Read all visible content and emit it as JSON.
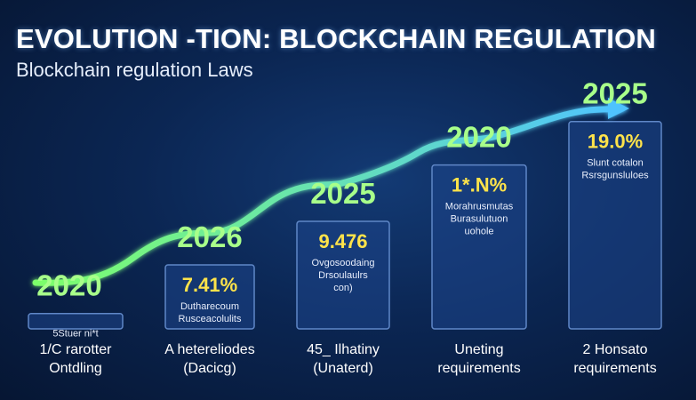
{
  "header": {
    "title": "EVOLUTION -TION: BLOCKCHAIN REGULATION",
    "subtitle": "Blockchain regulation Laws"
  },
  "chart_data": {
    "type": "bar",
    "title": "EVOLUTION -TION: BLOCKCHAIN REGULATION",
    "subtitle": "Blockchain regulation Laws",
    "categories": [
      "2020",
      "2026",
      "2025",
      "2020",
      "2025"
    ],
    "values": [
      6,
      25,
      42,
      64,
      81
    ],
    "ylim": [
      0,
      100
    ],
    "grid": false,
    "legend": "none",
    "value_labels": [
      "",
      "7.41%",
      "9.476",
      "1*.N%",
      "19.0%"
    ],
    "bar_text": [
      [
        "5Stuer ni*t"
      ],
      [
        "Dutharecoum",
        "Rusceacolulits"
      ],
      [
        "Ovgosoodaing",
        "Drsoulaulrs",
        "con)"
      ],
      [
        "Morahrusmutas",
        "Burasulutuon",
        "uohole"
      ],
      [
        "Slunt cotalon",
        "Rsrsgunsluloes"
      ]
    ],
    "captions": [
      [
        "1/C rarotter",
        "Ontdling"
      ],
      [
        "A hetereliodes",
        "(Dacicg)"
      ],
      [
        "45_ Ilhatiny",
        "(Unaterd)"
      ],
      [
        "Uneting",
        "requirements"
      ],
      [
        "2 Honsato",
        "requirements"
      ]
    ],
    "colors": {
      "bar_fill": "#1e468c",
      "bar_stroke": "#5f87c7",
      "year": "#a8ff8a",
      "value": "#ffe34a",
      "arrow_start": "#7dff6a",
      "arrow_end": "#4fc3ff"
    }
  }
}
